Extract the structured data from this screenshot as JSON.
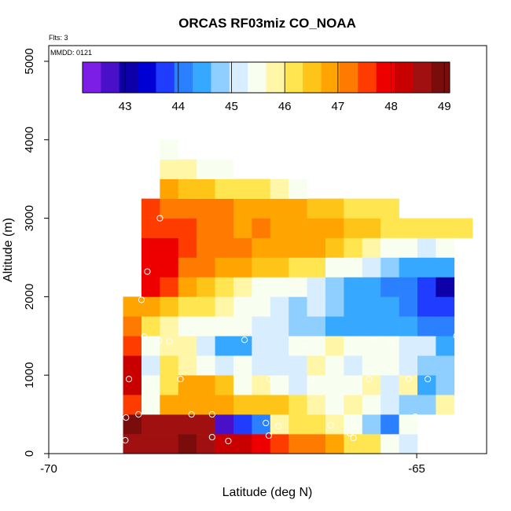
{
  "chart_data": {
    "type": "heatmap",
    "title": "ORCAS RF03miz CO_NOAA",
    "flights_label": "Flts: 3",
    "mmdd_label": "MMDD: 0121",
    "xlabel": "Latitude (deg N)",
    "ylabel": "Altitude (m)",
    "xlim": [
      -70,
      -64.05
    ],
    "ylim": [
      0,
      5200
    ],
    "x_ticks": [
      -70,
      -65
    ],
    "y_ticks": [
      0,
      1000,
      2000,
      3000,
      4000,
      5000
    ],
    "colorbar": {
      "min": 42.2,
      "max": 49.1,
      "ticks": [
        43,
        44,
        45,
        46,
        47,
        48,
        49
      ],
      "colors": [
        "#7c1fe6",
        "#4a0fc8",
        "#0d00a8",
        "#0000d4",
        "#1f3cff",
        "#2a80ff",
        "#36a8ff",
        "#8ecfff",
        "#d8eeff",
        "#f8fff0",
        "#fff6a8",
        "#ffe650",
        "#ffc418",
        "#ffa400",
        "#ff7a00",
        "#ff3c00",
        "#ee0000",
        "#c80000",
        "#a01010",
        "#7a0c0c"
      ]
    },
    "cell_size": {
      "lat": 0.25,
      "alt": 250
    },
    "rows": [
      {
        "alt": 0,
        "lat0": -68.99,
        "values": [
          48.6,
          48.5,
          48.6,
          48.8,
          48.7,
          48.4,
          48.1,
          48.0,
          47.6,
          47.3,
          47.1,
          46.8,
          46.3,
          46.1,
          45.6,
          45.0
        ]
      },
      {
        "alt": 250,
        "lat0": -68.99,
        "values": [
          48.8,
          48.7,
          48.6,
          48.5,
          48.5,
          42.7,
          43.7,
          44.1,
          45.9,
          46.0,
          46.0,
          45.8,
          45.4,
          44.9,
          44.2,
          45.5
        ]
      },
      {
        "alt": 500,
        "lat0": -68.99,
        "values": [
          47.6,
          45.4,
          46.7,
          46.9,
          46.8,
          46.9,
          46.5,
          46.6,
          46.6,
          46.3,
          45.8,
          45.6,
          45.7,
          45.4,
          45.3,
          44.8,
          44.8,
          45.8
        ]
      },
      {
        "alt": 750,
        "lat0": -68.99,
        "values": [
          48.3,
          45.6,
          46.3,
          46.8,
          46.7,
          46.4,
          45.6,
          45.9,
          45.6,
          45.3,
          45.5,
          45.6,
          45.6,
          45.7,
          45.0,
          45.7,
          44.5,
          44.7
        ]
      },
      {
        "alt": 1000,
        "lat0": -68.99,
        "values": [
          48.2,
          45.3,
          46.1,
          45.7,
          45.4,
          45.3,
          45.4,
          45.2,
          45.1,
          45.3,
          45.7,
          45.4,
          45.3,
          45.6,
          45.4,
          45.3,
          44.8,
          44.7
        ]
      },
      {
        "alt": 1250,
        "lat0": -68.99,
        "values": [
          47.6,
          45.6,
          45.9,
          45.7,
          45.0,
          44.5,
          44.4,
          45.1,
          45.3,
          45.4,
          45.6,
          45.7,
          45.4,
          45.4,
          45.5,
          45.3,
          45.3,
          44.6
        ]
      },
      {
        "alt": 1500,
        "lat0": -68.99,
        "values": [
          47.1,
          46.0,
          45.9,
          45.5,
          45.4,
          45.5,
          45.6,
          45.2,
          45.1,
          44.8,
          44.7,
          44.6,
          44.5,
          44.6,
          44.5,
          44.3,
          44.2,
          44.2
        ]
      },
      {
        "alt": 1750,
        "lat0": -68.99,
        "values": [
          47.0,
          46.8,
          46.6,
          46.2,
          46.1,
          45.9,
          45.6,
          45.4,
          45.3,
          44.9,
          45.1,
          44.7,
          44.5,
          44.3,
          44.3,
          44.0,
          43.9,
          43.8
        ]
      },
      {
        "alt": 2000,
        "lat0": -68.74,
        "values": [
          47.8,
          47.4,
          47.0,
          46.6,
          46.1,
          45.9,
          45.6,
          45.5,
          45.4,
          45.2,
          44.8,
          44.5,
          44.4,
          44.2,
          44.1,
          43.8,
          43.2
        ]
      },
      {
        "alt": 2250,
        "lat0": -68.74,
        "values": [
          48.0,
          47.8,
          47.3,
          47.1,
          46.9,
          46.7,
          46.6,
          46.4,
          46.3,
          46.1,
          45.6,
          45.4,
          45.2,
          44.9,
          44.6,
          44.4,
          44.6
        ]
      },
      {
        "alt": 2500,
        "lat0": -68.74,
        "values": [
          47.9,
          47.8,
          47.4,
          47.3,
          47.1,
          47.1,
          47.0,
          46.9,
          46.9,
          46.7,
          46.6,
          46.3,
          45.8,
          45.6,
          45.5,
          45.3,
          45.5
        ]
      },
      {
        "alt": 2750,
        "lat0": -68.74,
        "values": [
          47.7,
          47.5,
          47.4,
          47.2,
          47.2,
          47.0,
          47.1,
          47.0,
          47.0,
          46.9,
          46.8,
          46.5,
          46.4,
          46.3,
          46.2,
          46.0,
          46.3,
          46.1
        ]
      },
      {
        "alt": 3000,
        "lat0": -68.74,
        "values": [
          47.4,
          47.2,
          47.2,
          47.3,
          47.1,
          46.9,
          46.8,
          46.8,
          46.7,
          46.5,
          46.4,
          46.3,
          46.1,
          46.0
        ]
      },
      {
        "alt": 3250,
        "lat0": -68.49,
        "values": [
          46.7,
          46.4,
          46.4,
          46.2,
          46.2,
          46.0,
          45.8,
          45.5
        ]
      },
      {
        "alt": 3500,
        "lat0": -68.49,
        "values": [
          45.9,
          45.8,
          45.6,
          45.5
        ]
      },
      {
        "alt": 3750,
        "lat0": -68.49,
        "values": [
          45.5
        ]
      }
    ],
    "points": [
      {
        "lat": -68.96,
        "alt": 170
      },
      {
        "lat": -68.95,
        "alt": 460
      },
      {
        "lat": -68.78,
        "alt": 500
      },
      {
        "lat": -68.91,
        "alt": 950
      },
      {
        "lat": -68.66,
        "alt": 950
      },
      {
        "lat": -68.7,
        "alt": 1490
      },
      {
        "lat": -68.5,
        "alt": 1440
      },
      {
        "lat": -68.36,
        "alt": 1430
      },
      {
        "lat": -68.21,
        "alt": 950
      },
      {
        "lat": -68.06,
        "alt": 500
      },
      {
        "lat": -67.78,
        "alt": 500
      },
      {
        "lat": -67.78,
        "alt": 210
      },
      {
        "lat": -67.56,
        "alt": 160
      },
      {
        "lat": -67.34,
        "alt": 1450
      },
      {
        "lat": -67.0,
        "alt": 950
      },
      {
        "lat": -67.05,
        "alt": 390
      },
      {
        "lat": -67.01,
        "alt": 230
      },
      {
        "lat": -66.88,
        "alt": 350
      },
      {
        "lat": -66.43,
        "alt": 950
      },
      {
        "lat": -66.53,
        "alt": 1370
      },
      {
        "lat": -66.17,
        "alt": 360
      },
      {
        "lat": -65.91,
        "alt": 260
      },
      {
        "lat": -65.83,
        "alt": 340
      },
      {
        "lat": -65.65,
        "alt": 950
      },
      {
        "lat": -65.59,
        "alt": 1450
      },
      {
        "lat": -65.35,
        "alt": 1400
      },
      {
        "lat": -65.11,
        "alt": 950
      },
      {
        "lat": -65.02,
        "alt": 470
      },
      {
        "lat": -64.85,
        "alt": 950
      },
      {
        "lat": -64.65,
        "alt": 380
      },
      {
        "lat": -64.46,
        "alt": 1500
      },
      {
        "lat": -64.33,
        "alt": 2150
      },
      {
        "lat": -68.74,
        "alt": 1960
      },
      {
        "lat": -68.66,
        "alt": 2320
      },
      {
        "lat": -68.49,
        "alt": 3000
      },
      {
        "lat": -68.21,
        "alt": 3930
      },
      {
        "lat": -65.86,
        "alt": 200
      }
    ]
  }
}
